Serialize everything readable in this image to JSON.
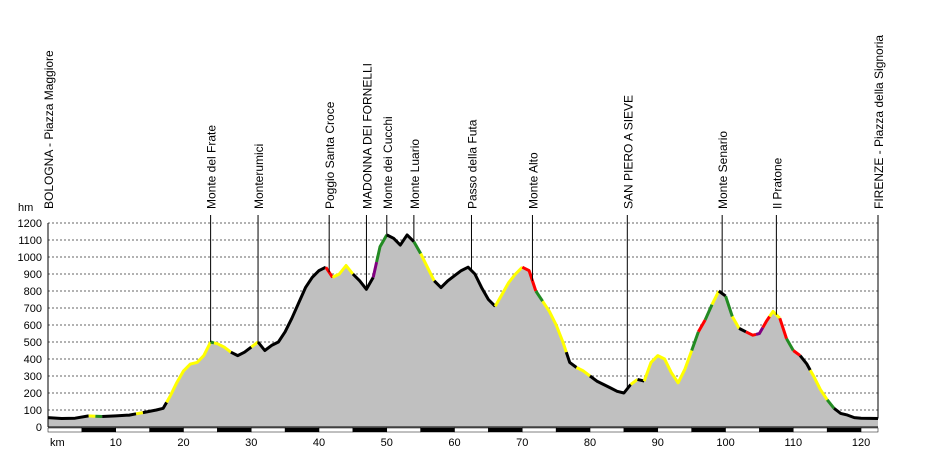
{
  "chart_data": {
    "type": "area",
    "ylabel": "hm",
    "xlabel": "km",
    "xlim": [
      0,
      122.5
    ],
    "ylim": [
      0,
      1200
    ],
    "yticks": [
      0,
      100,
      200,
      300,
      400,
      500,
      600,
      700,
      800,
      900,
      1000,
      1100,
      1200
    ],
    "xticks": [
      10,
      20,
      30,
      40,
      50,
      60,
      70,
      80,
      90,
      100,
      110,
      120
    ],
    "grid": true,
    "fill_color": "#c0c0c0",
    "line_color": "#000000",
    "gradient_colors": {
      "flat": "#000000",
      "moderate": "#228b22",
      "steep": "#ffff00",
      "very_steep": "#ff0000",
      "extreme": "#800080"
    },
    "profile": [
      [
        0,
        55
      ],
      [
        2,
        50
      ],
      [
        4,
        52
      ],
      [
        6,
        65
      ],
      [
        8,
        62
      ],
      [
        10,
        65
      ],
      [
        12,
        70
      ],
      [
        14,
        85
      ],
      [
        16,
        100
      ],
      [
        17,
        110
      ],
      [
        18,
        180
      ],
      [
        19,
        260
      ],
      [
        20,
        330
      ],
      [
        21,
        370
      ],
      [
        22,
        380
      ],
      [
        23,
        420
      ],
      [
        24,
        500
      ],
      [
        25,
        490
      ],
      [
        26,
        470
      ],
      [
        27,
        440
      ],
      [
        28,
        420
      ],
      [
        29,
        440
      ],
      [
        30,
        470
      ],
      [
        31,
        500
      ],
      [
        32,
        450
      ],
      [
        33,
        480
      ],
      [
        34,
        500
      ],
      [
        35,
        560
      ],
      [
        36,
        640
      ],
      [
        37,
        730
      ],
      [
        38,
        820
      ],
      [
        39,
        880
      ],
      [
        40,
        920
      ],
      [
        41,
        940
      ],
      [
        42,
        880
      ],
      [
        43,
        900
      ],
      [
        44,
        950
      ],
      [
        45,
        900
      ],
      [
        46,
        860
      ],
      [
        47,
        810
      ],
      [
        48,
        880
      ],
      [
        49,
        1060
      ],
      [
        50,
        1130
      ],
      [
        51,
        1110
      ],
      [
        52,
        1070
      ],
      [
        53,
        1130
      ],
      [
        54,
        1090
      ],
      [
        55,
        1020
      ],
      [
        56,
        940
      ],
      [
        57,
        860
      ],
      [
        58,
        820
      ],
      [
        59,
        860
      ],
      [
        60,
        890
      ],
      [
        61,
        920
      ],
      [
        62,
        940
      ],
      [
        63,
        900
      ],
      [
        64,
        820
      ],
      [
        65,
        750
      ],
      [
        66,
        710
      ],
      [
        67,
        780
      ],
      [
        68,
        850
      ],
      [
        69,
        900
      ],
      [
        70,
        940
      ],
      [
        71,
        920
      ],
      [
        72,
        800
      ],
      [
        73,
        740
      ],
      [
        74,
        680
      ],
      [
        75,
        600
      ],
      [
        76,
        500
      ],
      [
        77,
        380
      ],
      [
        78,
        350
      ],
      [
        79,
        330
      ],
      [
        80,
        300
      ],
      [
        81,
        270
      ],
      [
        82,
        250
      ],
      [
        83,
        230
      ],
      [
        84,
        210
      ],
      [
        85,
        200
      ],
      [
        86,
        250
      ],
      [
        87,
        280
      ],
      [
        88,
        270
      ],
      [
        89,
        380
      ],
      [
        90,
        420
      ],
      [
        91,
        400
      ],
      [
        92,
        320
      ],
      [
        93,
        260
      ],
      [
        94,
        340
      ],
      [
        95,
        450
      ],
      [
        96,
        560
      ],
      [
        97,
        630
      ],
      [
        98,
        720
      ],
      [
        99,
        800
      ],
      [
        100,
        770
      ],
      [
        101,
        650
      ],
      [
        102,
        580
      ],
      [
        103,
        560
      ],
      [
        104,
        540
      ],
      [
        105,
        550
      ],
      [
        106,
        620
      ],
      [
        107,
        680
      ],
      [
        108,
        640
      ],
      [
        109,
        520
      ],
      [
        110,
        450
      ],
      [
        111,
        420
      ],
      [
        112,
        370
      ],
      [
        113,
        300
      ],
      [
        114,
        220
      ],
      [
        115,
        160
      ],
      [
        116,
        110
      ],
      [
        117,
        80
      ],
      [
        118,
        70
      ],
      [
        119,
        55
      ],
      [
        120,
        52
      ],
      [
        122.5,
        50
      ]
    ],
    "gradient_segments": [
      [
        0,
        6,
        "flat"
      ],
      [
        6,
        7,
        "steep"
      ],
      [
        7,
        8,
        "moderate"
      ],
      [
        8,
        13,
        "flat"
      ],
      [
        13,
        14,
        "steep"
      ],
      [
        14,
        17.5,
        "flat"
      ],
      [
        17.5,
        24,
        "steep"
      ],
      [
        24,
        24.5,
        "moderate"
      ],
      [
        24.5,
        27,
        "steep"
      ],
      [
        27,
        30,
        "flat"
      ],
      [
        30,
        31,
        "steep"
      ],
      [
        31,
        41,
        "flat"
      ],
      [
        41,
        42,
        "very_steep"
      ],
      [
        42,
        45,
        "steep"
      ],
      [
        45,
        48,
        "flat"
      ],
      [
        48,
        48.5,
        "extreme"
      ],
      [
        48.5,
        50,
        "moderate"
      ],
      [
        50,
        54,
        "flat"
      ],
      [
        54,
        55,
        "moderate"
      ],
      [
        55,
        57,
        "steep"
      ],
      [
        57,
        66,
        "flat"
      ],
      [
        66,
        70,
        "steep"
      ],
      [
        70,
        72,
        "very_steep"
      ],
      [
        72,
        73,
        "moderate"
      ],
      [
        73,
        76.5,
        "steep"
      ],
      [
        76.5,
        78,
        "flat"
      ],
      [
        78,
        80,
        "steep"
      ],
      [
        80,
        86,
        "flat"
      ],
      [
        86,
        87,
        "steep"
      ],
      [
        87,
        88,
        "flat"
      ],
      [
        88,
        95,
        "steep"
      ],
      [
        95,
        96,
        "moderate"
      ],
      [
        96,
        97,
        "very_steep"
      ],
      [
        97,
        98,
        "moderate"
      ],
      [
        98,
        99,
        "steep"
      ],
      [
        99,
        100,
        "flat"
      ],
      [
        100,
        101,
        "moderate"
      ],
      [
        101,
        102,
        "steep"
      ],
      [
        102,
        103,
        "flat"
      ],
      [
        103,
        104.5,
        "very_steep"
      ],
      [
        104.5,
        105.5,
        "extreme"
      ],
      [
        105.5,
        106.5,
        "very_steep"
      ],
      [
        106.5,
        108,
        "steep"
      ],
      [
        108,
        109,
        "very_steep"
      ],
      [
        109,
        110,
        "moderate"
      ],
      [
        110,
        111,
        "very_steep"
      ],
      [
        111,
        112.5,
        "flat"
      ],
      [
        112.5,
        115,
        "steep"
      ],
      [
        115,
        116,
        "moderate"
      ],
      [
        116,
        122.5,
        "flat"
      ]
    ],
    "places": [
      {
        "km": 0,
        "name": "BOLOGNA - Piazza Maggiore",
        "line": false
      },
      {
        "km": 24,
        "name": "Monte del Frate",
        "line": true
      },
      {
        "km": 31,
        "name": "Monterumici",
        "line": true
      },
      {
        "km": 41.5,
        "name": "Poggio Santa Croce",
        "line": true
      },
      {
        "km": 47,
        "name": "MADONNA DEI FORNELLI",
        "line": true
      },
      {
        "km": 50,
        "name": "Monte dei Cucchi",
        "line": true
      },
      {
        "km": 54,
        "name": "Monte Luario",
        "line": true
      },
      {
        "km": 62.5,
        "name": "Passo della Futa",
        "line": true
      },
      {
        "km": 71.5,
        "name": "Monte Alto",
        "line": true
      },
      {
        "km": 85.5,
        "name": "SAN PIERO A SIEVE",
        "line": true
      },
      {
        "km": 99.5,
        "name": "Monte Senario",
        "line": true
      },
      {
        "km": 107.5,
        "name": "Il Pratone",
        "line": true
      },
      {
        "km": 122.5,
        "name": "FIRENZE - Piazza della Signoria",
        "line": true
      }
    ]
  }
}
